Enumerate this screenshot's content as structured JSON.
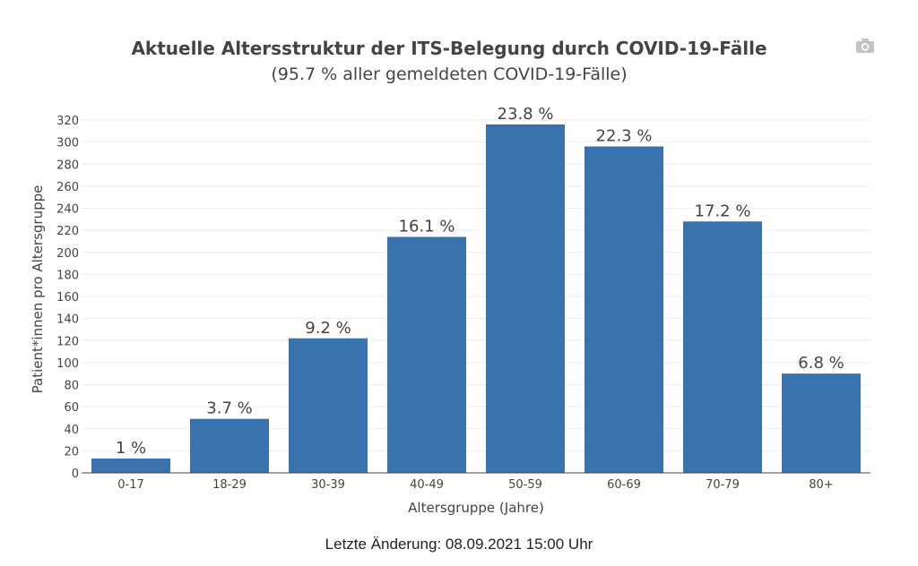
{
  "chart_data": {
    "type": "bar",
    "title": "Aktuelle Altersstruktur der ITS-Belegung durch COVID-19-Fälle",
    "subtitle": "(95.7 % aller gemeldeten COVID-19-Fälle)",
    "xlabel": "Altersgruppe (Jahre)",
    "ylabel": "Patient*innen pro Altersgruppe",
    "categories": [
      "0-17",
      "18-29",
      "30-39",
      "40-49",
      "50-59",
      "60-69",
      "70-79",
      "80+"
    ],
    "values": [
      13,
      49,
      122,
      214,
      316,
      296,
      228,
      90
    ],
    "data_labels": [
      "1 %",
      "3.7 %",
      "9.2 %",
      "16.1 %",
      "23.8 %",
      "22.3 %",
      "17.2 %",
      "6.8 %"
    ],
    "ylim": [
      0,
      320
    ],
    "yticks": [
      0,
      20,
      40,
      60,
      80,
      100,
      120,
      140,
      160,
      180,
      200,
      220,
      240,
      260,
      280,
      300,
      320
    ],
    "grid": true,
    "bar_color": "#3a72ad"
  },
  "footer": {
    "text": "Letzte Änderung: 08.09.2021 15:00 Uhr"
  },
  "toolbar": {
    "camera_icon": "camera-icon"
  }
}
